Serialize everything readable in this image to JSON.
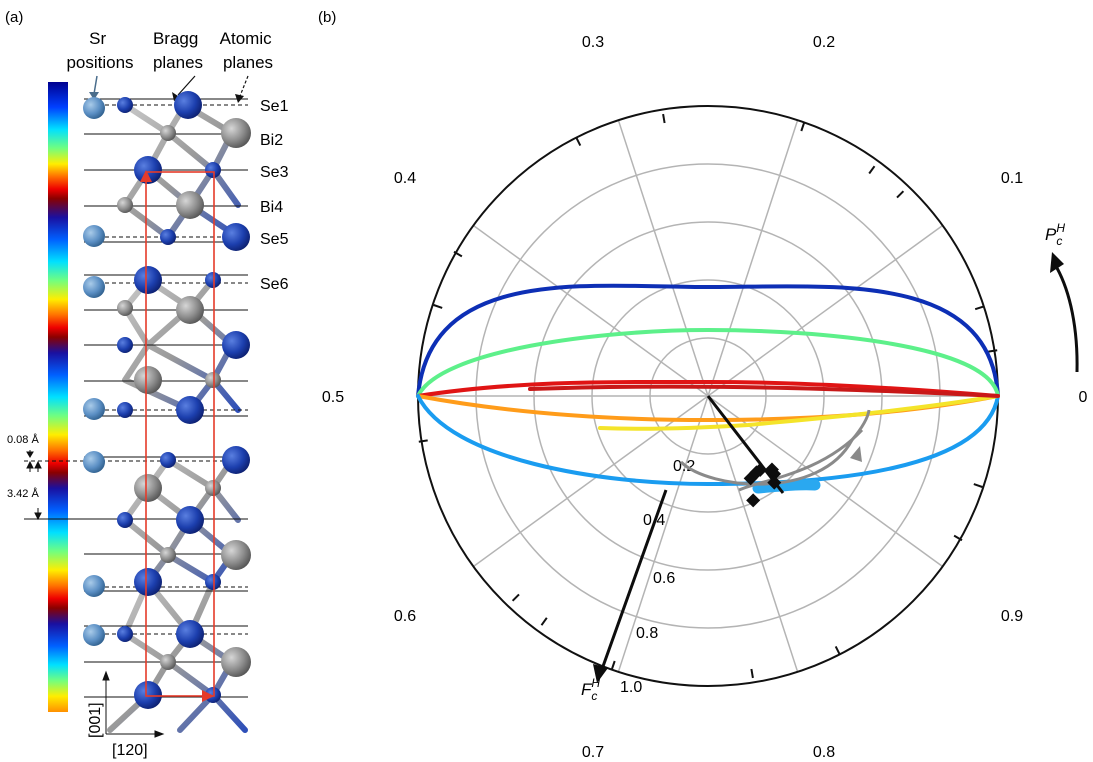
{
  "panel_a": {
    "label": "(a)",
    "headers": {
      "sr": [
        "Sr",
        "positions"
      ],
      "bragg": [
        "Bragg",
        "planes"
      ],
      "atomic": [
        "Atomic",
        "planes"
      ]
    },
    "layer_labels": [
      "Se1",
      "Bi2",
      "Se3",
      "Bi4",
      "Se5",
      "Se6"
    ],
    "spacing_small": "0.08 Å",
    "spacing_large": "3.42 Å",
    "axis_vertical": "[001]",
    "axis_horizontal": "[120]",
    "colors": {
      "se_atom": "#1c3fae",
      "bi_atom": "#8c8c8c",
      "sr_atom": "#5b8fc4",
      "unit_cell": "#e53b2a"
    }
  },
  "panel_b": {
    "label": "(b)",
    "angle_labels": [
      "0",
      "0.1",
      "0.2",
      "0.3",
      "0.4",
      "0.5",
      "0.6",
      "0.7",
      "0.8",
      "0.9"
    ],
    "radial_labels": [
      "0.2",
      "0.4",
      "0.6",
      "0.8",
      "1.0"
    ],
    "vector_label_main": "F",
    "vector_label_sub": "c",
    "vector_label_sup": "H",
    "phase_label_main": "P",
    "phase_label_sub": "c",
    "phase_label_sup": "H",
    "data_markers": [
      {
        "phase": 0.826,
        "amplitude": 0.4
      },
      {
        "phase": 0.84,
        "amplitude": 0.39
      },
      {
        "phase": 0.848,
        "amplitude": 0.39
      },
      {
        "phase": 0.862,
        "amplitude": 0.44
      },
      {
        "phase": 0.864,
        "amplitude": 0.42
      },
      {
        "phase": 0.854,
        "amplitude": 0.47
      },
      {
        "phase": 0.815,
        "amplitude": 0.49
      }
    ]
  }
}
